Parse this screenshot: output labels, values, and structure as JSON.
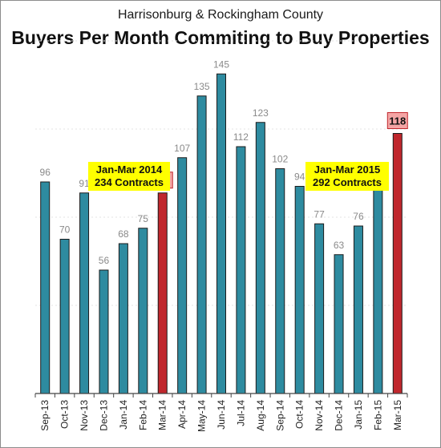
{
  "chart_data": {
    "type": "bar",
    "subtitle": "Harrisonburg & Rockingham County",
    "title": "Buyers Per Month Commiting to Buy Properties",
    "categories": [
      "Sep-13",
      "Oct-13",
      "Nov-13",
      "Dec-13",
      "Jan-14",
      "Feb-14",
      "Mar-14",
      "Apr-14",
      "May-14",
      "Jun-14",
      "Jul-14",
      "Aug-14",
      "Sep-14",
      "Oct-14",
      "Nov-14",
      "Dec-14",
      "Jan-15",
      "Feb-15",
      "Mar-15"
    ],
    "values": [
      96,
      70,
      91,
      56,
      68,
      75,
      91,
      107,
      135,
      145,
      112,
      123,
      102,
      94,
      77,
      63,
      76,
      98,
      118
    ],
    "highlighted": [
      "Mar-14",
      "Mar-15"
    ],
    "ylim": [
      0,
      160
    ],
    "grid": true,
    "colors": {
      "bar": "#2e8ba0",
      "highlight": "#c0272d",
      "highlight_label_bg": "#f4a5a5",
      "callout_bg": "#ffff00"
    },
    "annotations": [
      {
        "id": "callout-2014",
        "lines": [
          "Jan-Mar 2014",
          "234 Contracts"
        ]
      },
      {
        "id": "callout-2015",
        "lines": [
          "Jan-Mar 2015",
          "292 Contracts"
        ]
      }
    ]
  }
}
